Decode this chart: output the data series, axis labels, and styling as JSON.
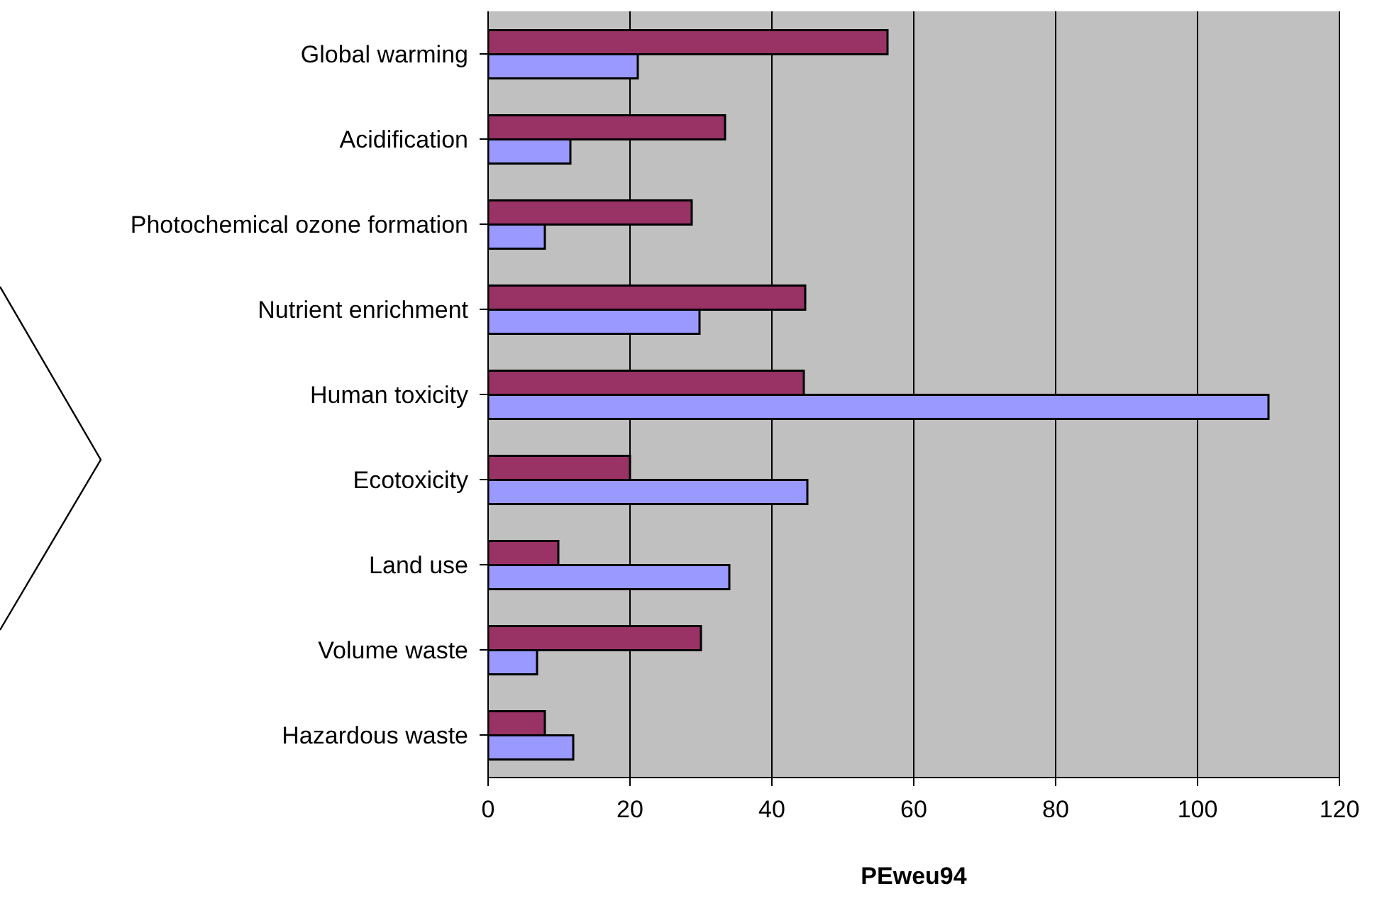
{
  "chart_data": {
    "type": "bar",
    "orientation": "horizontal",
    "xlabel": "PEweu94",
    "categories": [
      "Global warming",
      "Acidification",
      "Photochemical ozone formation",
      "Nutrient enrichment",
      "Human toxicity",
      "Ecotoxicity",
      "Land use",
      "Volume waste",
      "Hazardous waste"
    ],
    "series": [
      {
        "color": "#993366",
        "values": [
          56.3,
          33.4,
          28.7,
          44.7,
          44.5,
          20,
          9.9,
          30,
          8
        ]
      },
      {
        "color": "#9999ff",
        "values": [
          21.1,
          11.6,
          8,
          29.8,
          110,
          45,
          34,
          6.9,
          12
        ]
      }
    ],
    "xlim": [
      0,
      120
    ],
    "xticks": [
      0,
      20,
      40,
      60,
      80,
      100,
      120
    ],
    "grid": "x",
    "legend": false
  }
}
